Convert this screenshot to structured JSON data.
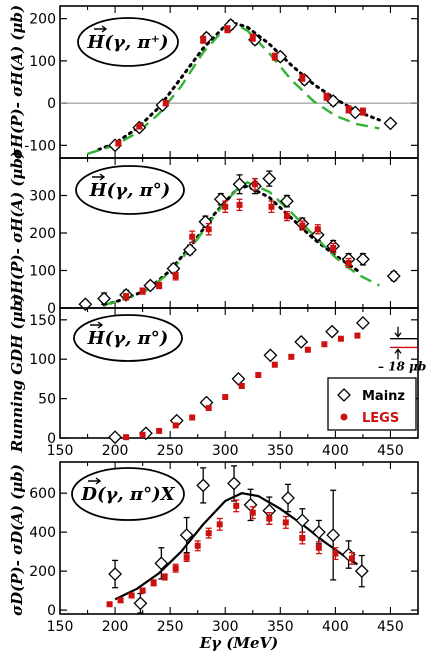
{
  "chart_data": [
    {
      "type": "scatter",
      "reaction_label": "H(γ, π⁺)",
      "ylabel": "σH(P)- σH(A) (μb)",
      "xlim": [
        150,
        475
      ],
      "ylim": [
        -130,
        230
      ],
      "yticks": [
        -100,
        0,
        100,
        200
      ],
      "ytick_labels": [
        "-100",
        "0",
        "100",
        "200"
      ],
      "series": [
        {
          "name": "",
          "marker": "open-diamond",
          "color": "#000000",
          "x": [
            200,
            222,
            243,
            283,
            305,
            327,
            350,
            372,
            398,
            418,
            450
          ],
          "y": [
            -100,
            -58,
            -5,
            155,
            185,
            150,
            110,
            55,
            5,
            -22,
            -48
          ],
          "err": [
            8,
            8,
            8,
            10,
            10,
            10,
            10,
            10,
            10,
            8,
            8
          ]
        },
        {
          "name": "",
          "marker": "red-dot",
          "color": "#cc1111",
          "x": [
            203,
            222,
            246,
            280,
            302,
            325,
            345,
            370,
            392,
            412,
            425
          ],
          "y": [
            -95,
            -55,
            0,
            150,
            175,
            155,
            110,
            60,
            15,
            -15,
            -20
          ],
          "err": [
            6,
            6,
            6,
            8,
            8,
            8,
            8,
            8,
            8,
            8,
            8
          ]
        }
      ],
      "curves": [
        {
          "style": "dotted",
          "color": "#000000",
          "x": [
            185,
            200,
            220,
            240,
            260,
            280,
            300,
            310,
            320,
            340,
            360,
            380,
            400,
            420,
            440
          ],
          "y": [
            -110,
            -95,
            -60,
            -10,
            60,
            130,
            183,
            188,
            180,
            140,
            90,
            45,
            10,
            -20,
            -40
          ]
        },
        {
          "style": "dashed",
          "color": "#33b233",
          "x": [
            175,
            200,
            220,
            240,
            260,
            280,
            300,
            310,
            320,
            340,
            360,
            380,
            400,
            420,
            440
          ],
          "y": [
            -120,
            -100,
            -70,
            -25,
            40,
            120,
            178,
            185,
            172,
            118,
            55,
            5,
            -30,
            -50,
            -60
          ]
        }
      ],
      "zero_line": true
    },
    {
      "type": "scatter",
      "reaction_label": "H(γ, π°)",
      "ylabel": "σH(P)- σH(A) (μb)",
      "xlim": [
        150,
        475
      ],
      "ylim": [
        0,
        400
      ],
      "yticks": [
        0,
        100,
        200,
        300
      ],
      "ytick_labels": [
        "0",
        "100",
        "200",
        "300"
      ],
      "series": [
        {
          "name": "",
          "marker": "open-diamond",
          "color": "#000000",
          "x": [
            173,
            190,
            210,
            232,
            253,
            268,
            282,
            296,
            313,
            327,
            340,
            356,
            370,
            384,
            398,
            412,
            425,
            453
          ],
          "y": [
            10,
            25,
            35,
            60,
            105,
            155,
            230,
            290,
            330,
            325,
            345,
            285,
            225,
            195,
            165,
            130,
            130,
            85
          ],
          "err": [
            10,
            15,
            12,
            10,
            12,
            12,
            15,
            15,
            25,
            20,
            20,
            15,
            15,
            15,
            15,
            15,
            15,
            12
          ]
        },
        {
          "name": "",
          "marker": "red-dot",
          "color": "#cc1111",
          "x": [
            210,
            225,
            240,
            255,
            270,
            285,
            300,
            313,
            327,
            342,
            356,
            370,
            384,
            398,
            412
          ],
          "y": [
            30,
            45,
            60,
            85,
            190,
            210,
            270,
            275,
            330,
            270,
            245,
            220,
            210,
            160,
            120
          ],
          "err": [
            8,
            8,
            8,
            10,
            15,
            15,
            15,
            15,
            15,
            15,
            12,
            12,
            12,
            12,
            12
          ]
        }
      ],
      "curves": [
        {
          "style": "dotted",
          "color": "#000000",
          "x": [
            190,
            210,
            230,
            250,
            270,
            290,
            310,
            320,
            340,
            360,
            380,
            400,
            420
          ],
          "y": [
            8,
            25,
            50,
            100,
            170,
            250,
            315,
            325,
            295,
            240,
            185,
            140,
            100
          ]
        },
        {
          "style": "dashed",
          "color": "#33b233",
          "x": [
            190,
            210,
            230,
            250,
            270,
            290,
            310,
            320,
            340,
            360,
            380,
            400,
            420,
            440
          ],
          "y": [
            8,
            25,
            50,
            95,
            165,
            245,
            315,
            335,
            310,
            255,
            195,
            135,
            90,
            60
          ]
        }
      ]
    },
    {
      "type": "scatter",
      "reaction_label": "H(γ, π°)",
      "ylabel": "Running GDH (μb)",
      "xlim": [
        150,
        475
      ],
      "ylim": [
        0,
        165
      ],
      "yticks": [
        0,
        50,
        100,
        150
      ],
      "ytick_labels": [
        "0",
        "50",
        "100",
        "150"
      ],
      "xticks": [
        150,
        200,
        250,
        300,
        350,
        400,
        450
      ],
      "xtick_labels": [
        "150",
        "200",
        "250",
        "300",
        "350",
        "400",
        "450"
      ],
      "series": [
        {
          "name": "Mainz",
          "marker": "open-diamond",
          "color": "#000000",
          "x": [
            200,
            228,
            256,
            283,
            312,
            341,
            369,
            397,
            425
          ],
          "y": [
            1,
            6,
            22,
            45,
            75,
            105,
            122,
            135,
            146
          ]
        },
        {
          "name": "LEGS",
          "marker": "red-dot",
          "color": "#cc1111",
          "x": [
            210,
            225,
            240,
            255,
            270,
            285,
            300,
            315,
            330,
            345,
            360,
            375,
            390,
            405,
            420
          ],
          "y": [
            1,
            4,
            9,
            16,
            26,
            38,
            52,
            66,
            80,
            93,
            103,
            112,
            119,
            126,
            130
          ]
        }
      ],
      "annotation": "– 18 μb",
      "legend_loc": "lower-right"
    },
    {
      "type": "scatter",
      "reaction_label": "D(γ, π°)X",
      "ylabel": "σD(P)- σD(A) (μb)",
      "xlabel": "Eγ (MeV)",
      "xlim": [
        150,
        475
      ],
      "ylim": [
        -20,
        760
      ],
      "yticks": [
        0,
        200,
        400,
        600
      ],
      "ytick_labels": [
        "0",
        "200",
        "400",
        "600"
      ],
      "xticks": [
        150,
        200,
        250,
        300,
        350,
        400,
        450
      ],
      "xtick_labels": [
        "150",
        "200",
        "250",
        "300",
        "350",
        "400",
        "450"
      ],
      "series": [
        {
          "name": "",
          "marker": "open-diamond",
          "color": "#000000",
          "x": [
            200,
            223,
            242,
            265,
            280,
            308,
            323,
            340,
            357,
            370,
            385,
            398,
            412,
            424
          ],
          "y": [
            185,
            35,
            240,
            385,
            640,
            650,
            540,
            510,
            575,
            460,
            400,
            385,
            285,
            200
          ],
          "err": [
            70,
            50,
            80,
            90,
            90,
            90,
            80,
            70,
            70,
            60,
            60,
            230,
            70,
            80
          ]
        },
        {
          "name": "",
          "marker": "red-dot",
          "color": "#cc1111",
          "x": [
            195,
            205,
            215,
            225,
            235,
            245,
            255,
            265,
            275,
            285,
            295,
            310,
            325,
            340,
            355,
            370,
            385,
            400,
            415
          ],
          "y": [
            30,
            50,
            75,
            100,
            140,
            170,
            215,
            270,
            330,
            395,
            440,
            535,
            500,
            470,
            450,
            370,
            320,
            290,
            265
          ],
          "err": [
            10,
            10,
            12,
            12,
            15,
            15,
            20,
            20,
            25,
            25,
            30,
            30,
            30,
            30,
            30,
            30,
            30,
            30,
            30
          ]
        }
      ],
      "curves": [
        {
          "style": "solid",
          "color": "#000000",
          "x": [
            200,
            220,
            240,
            260,
            280,
            300,
            315,
            330,
            350,
            370,
            390,
            410,
            420
          ],
          "y": [
            55,
            110,
            190,
            300,
            440,
            560,
            600,
            585,
            520,
            440,
            350,
            270,
            235
          ]
        }
      ]
    }
  ]
}
